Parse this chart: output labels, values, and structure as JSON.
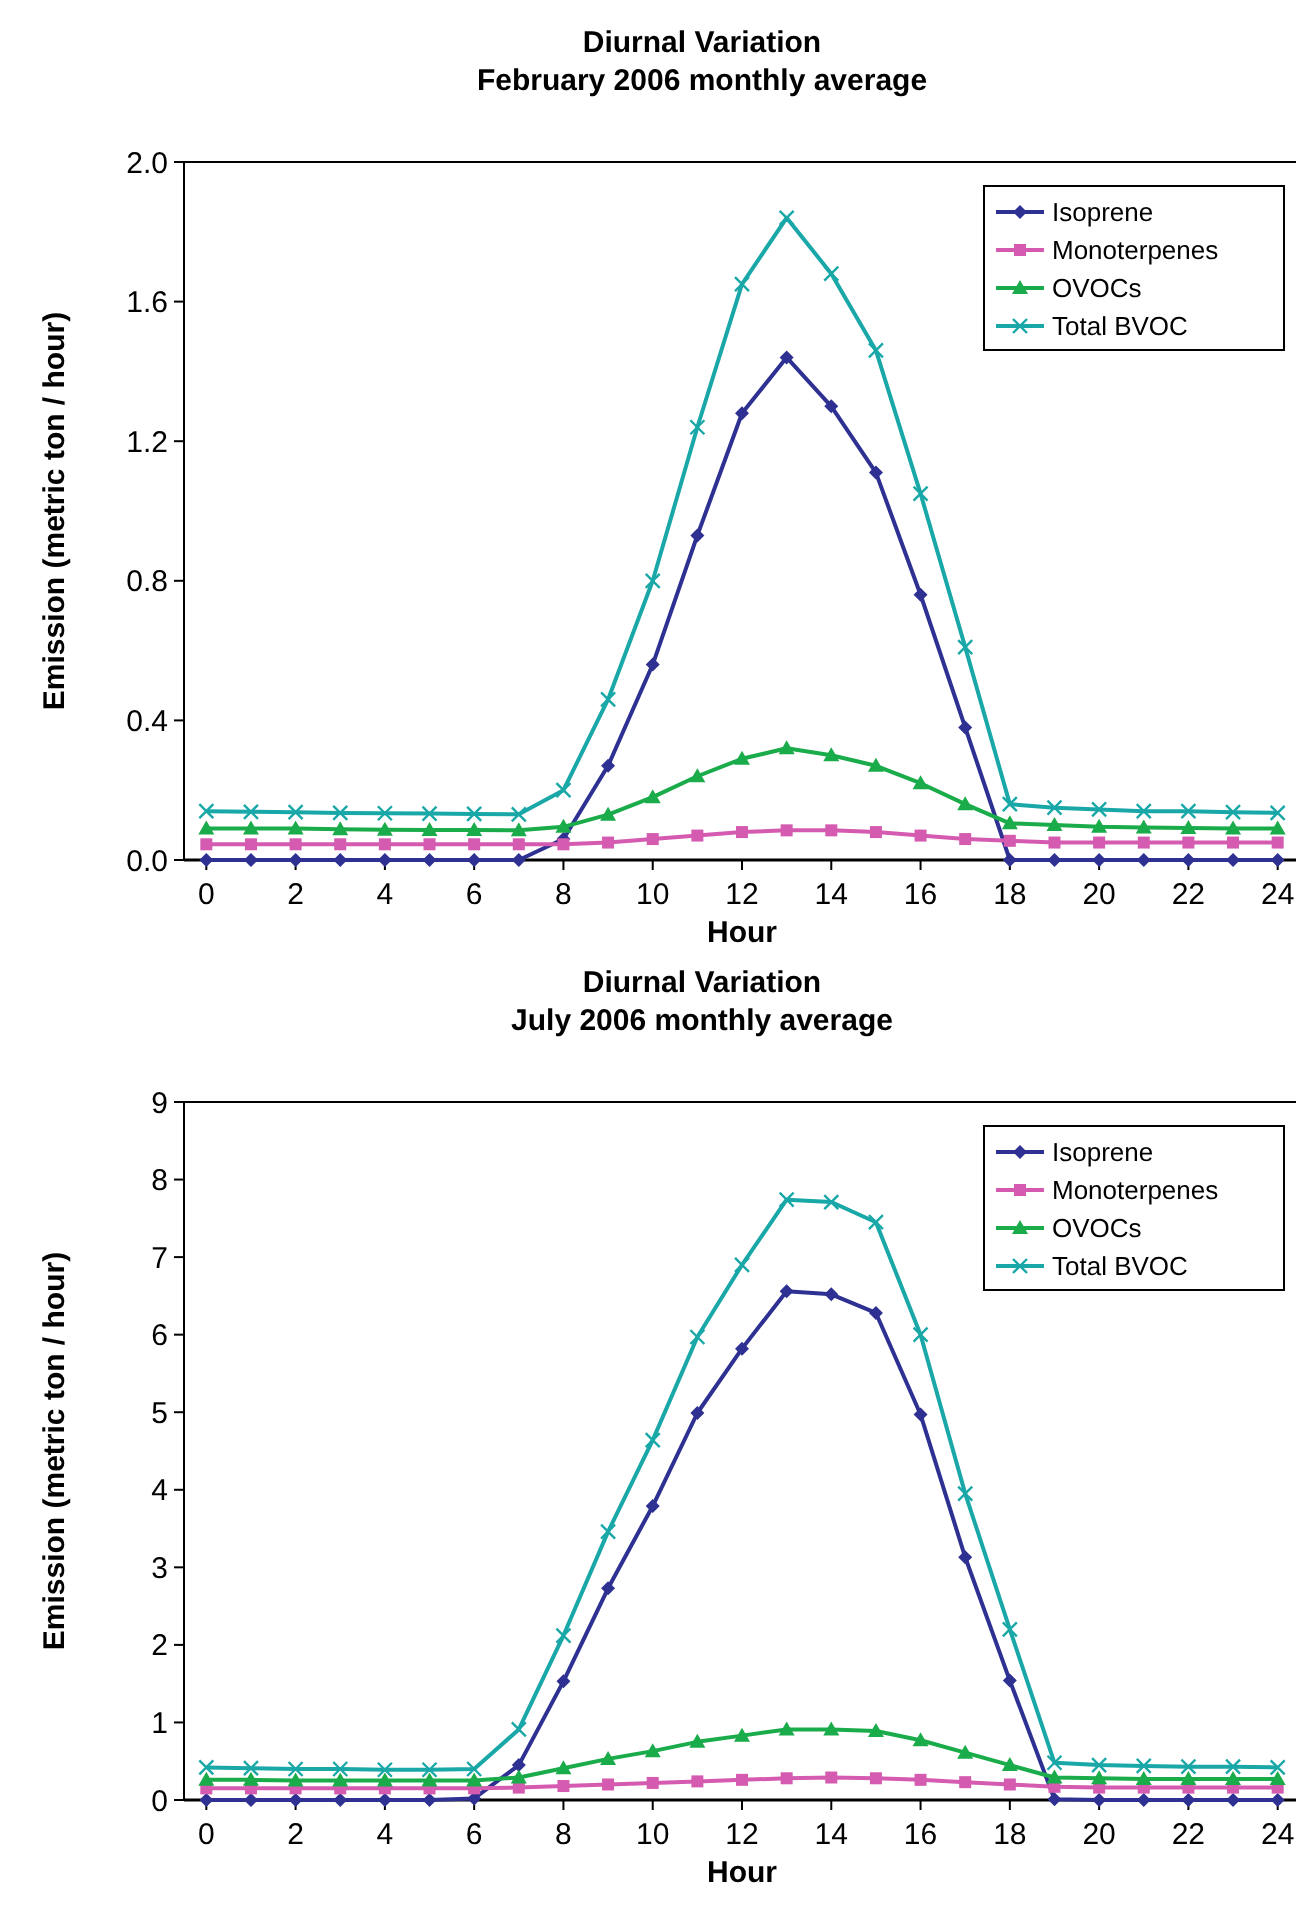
{
  "chart_data": [
    {
      "type": "line",
      "title": "Diurnal Variation",
      "subtitle": "February 2006 monthly average",
      "xlabel": "Hour",
      "ylabel": "Emission (metric ton / hour)",
      "x": [
        0,
        1,
        2,
        3,
        4,
        5,
        6,
        7,
        8,
        9,
        10,
        11,
        12,
        13,
        14,
        15,
        16,
        17,
        18,
        19,
        20,
        21,
        22,
        23,
        24
      ],
      "xlim": [
        -0.5,
        24.5
      ],
      "xticks": [
        0,
        2,
        4,
        6,
        8,
        10,
        12,
        14,
        16,
        18,
        20,
        22,
        24
      ],
      "ylim": [
        0,
        2
      ],
      "yticks": [
        {
          "value": 0,
          "label": "0.0"
        },
        {
          "value": 0.4,
          "label": "0.4"
        },
        {
          "value": 0.8,
          "label": "0.8"
        },
        {
          "value": 1.2,
          "label": "1.2"
        },
        {
          "value": 1.6,
          "label": "1.6"
        },
        {
          "value": 2,
          "label": "2.0"
        }
      ],
      "grid": false,
      "legend": "top right",
      "series": [
        {
          "name": "Isoprene",
          "color": "#2e3192",
          "marker": "diamond",
          "values": [
            0,
            0,
            0,
            0,
            0,
            0,
            0,
            0,
            0.06,
            0.27,
            0.56,
            0.93,
            1.28,
            1.44,
            1.3,
            1.11,
            0.76,
            0.38,
            0,
            0,
            0,
            0,
            0,
            0,
            0
          ]
        },
        {
          "name": "Monoterpenes",
          "color": "#d45bb0",
          "marker": "square",
          "values": [
            0.045,
            0.045,
            0.045,
            0.045,
            0.045,
            0.045,
            0.045,
            0.045,
            0.045,
            0.05,
            0.06,
            0.07,
            0.08,
            0.085,
            0.085,
            0.08,
            0.07,
            0.06,
            0.055,
            0.05,
            0.05,
            0.05,
            0.05,
            0.05,
            0.05
          ]
        },
        {
          "name": "OVOCs",
          "color": "#1aab4a",
          "marker": "triangle",
          "values": [
            0.09,
            0.09,
            0.09,
            0.088,
            0.087,
            0.086,
            0.086,
            0.085,
            0.095,
            0.13,
            0.18,
            0.24,
            0.29,
            0.32,
            0.3,
            0.27,
            0.22,
            0.16,
            0.105,
            0.1,
            0.095,
            0.093,
            0.092,
            0.09,
            0.09
          ]
        },
        {
          "name": "Total BVOC",
          "color": "#1aa7a7",
          "marker": "cross",
          "values": [
            0.14,
            0.138,
            0.137,
            0.135,
            0.134,
            0.133,
            0.132,
            0.131,
            0.2,
            0.46,
            0.8,
            1.24,
            1.65,
            1.84,
            1.68,
            1.46,
            1.05,
            0.61,
            0.16,
            0.15,
            0.145,
            0.14,
            0.14,
            0.137,
            0.135
          ]
        }
      ]
    },
    {
      "type": "line",
      "title": "Diurnal Variation",
      "subtitle": "July 2006 monthly average",
      "xlabel": "Hour",
      "ylabel": "Emission (metric ton / hour)",
      "x": [
        0,
        1,
        2,
        3,
        4,
        5,
        6,
        7,
        8,
        9,
        10,
        11,
        12,
        13,
        14,
        15,
        16,
        17,
        18,
        19,
        20,
        21,
        22,
        23,
        24
      ],
      "xlim": [
        -0.5,
        24.5
      ],
      "xticks": [
        0,
        2,
        4,
        6,
        8,
        10,
        12,
        14,
        16,
        18,
        20,
        22,
        24
      ],
      "ylim": [
        0,
        9
      ],
      "yticks": [
        0,
        1,
        2,
        3,
        4,
        5,
        6,
        7,
        8,
        9
      ],
      "grid": false,
      "legend": "top right",
      "series": [
        {
          "name": "Isoprene",
          "color": "#2e3192",
          "marker": "diamond",
          "values": [
            0,
            0,
            0,
            0,
            0,
            0,
            0.02,
            0.45,
            1.53,
            2.73,
            3.79,
            4.99,
            5.82,
            6.56,
            6.52,
            6.28,
            4.97,
            3.13,
            1.54,
            0.01,
            0,
            0,
            0,
            0,
            0
          ]
        },
        {
          "name": "Monoterpenes",
          "color": "#d45bb0",
          "marker": "square",
          "values": [
            0.15,
            0.15,
            0.15,
            0.15,
            0.15,
            0.15,
            0.15,
            0.16,
            0.18,
            0.2,
            0.22,
            0.24,
            0.26,
            0.28,
            0.29,
            0.28,
            0.26,
            0.23,
            0.2,
            0.17,
            0.16,
            0.16,
            0.16,
            0.16,
            0.16
          ]
        },
        {
          "name": "OVOCs",
          "color": "#1aab4a",
          "marker": "triangle",
          "values": [
            0.26,
            0.26,
            0.25,
            0.25,
            0.25,
            0.25,
            0.25,
            0.29,
            0.41,
            0.53,
            0.63,
            0.75,
            0.83,
            0.91,
            0.91,
            0.89,
            0.77,
            0.61,
            0.45,
            0.29,
            0.28,
            0.27,
            0.27,
            0.27,
            0.27
          ]
        },
        {
          "name": "Total BVOC",
          "color": "#1aa7a7",
          "marker": "cross",
          "values": [
            0.42,
            0.41,
            0.4,
            0.4,
            0.39,
            0.39,
            0.4,
            0.91,
            2.12,
            3.46,
            4.64,
            5.97,
            6.9,
            7.74,
            7.71,
            7.45,
            6.0,
            3.95,
            2.2,
            0.48,
            0.45,
            0.44,
            0.43,
            0.43,
            0.42
          ]
        }
      ]
    }
  ]
}
